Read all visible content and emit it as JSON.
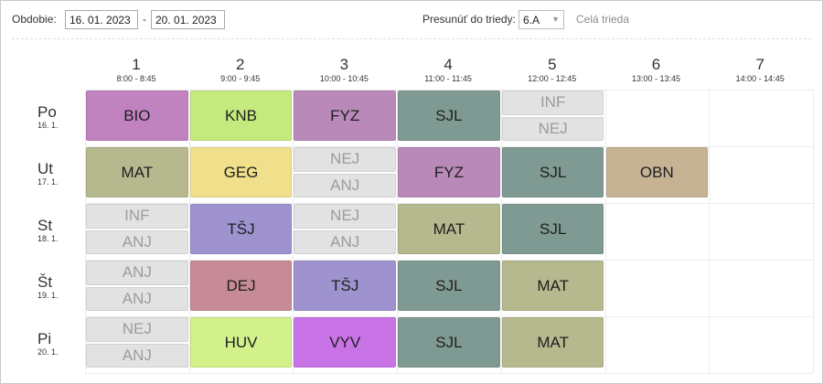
{
  "toolbar": {
    "period_label": "Obdobie:",
    "date_from": "16. 01. 2023",
    "date_sep": "-",
    "date_to": "20. 01. 2023",
    "move_label": "Presunúť do triedy:",
    "class_value": "6.A",
    "whole_class_link": "Celá trieda"
  },
  "colors": {
    "BIO": "#c083c0",
    "KNB": "#c4ea7e",
    "FYZ": "#b98ab9",
    "SJL": "#7f9a93",
    "MAT": "#b5b98d",
    "GEG": "#f0df8b",
    "OBN": "#c5b393",
    "TŠJ": "#9e93cf",
    "DEJ": "#c78b97",
    "HUV": "#d2f18a",
    "VYV": "#c873e6",
    "gray": "#e2e2e2"
  },
  "periods": [
    {
      "num": "1",
      "time": "8:00 - 8:45"
    },
    {
      "num": "2",
      "time": "9:00 - 9:45"
    },
    {
      "num": "3",
      "time": "10:00 - 10:45"
    },
    {
      "num": "4",
      "time": "11:00 - 11:45"
    },
    {
      "num": "5",
      "time": "12:00 - 12:45"
    },
    {
      "num": "6",
      "time": "13:00 - 13:45"
    },
    {
      "num": "7",
      "time": "14:00 - 14:45"
    }
  ],
  "days": [
    {
      "day": "Po",
      "date": "16. 1.",
      "lessons": [
        [
          "BIO"
        ],
        [
          "KNB"
        ],
        [
          "FYZ"
        ],
        [
          "SJL"
        ],
        [
          "INF",
          "NEJ"
        ],
        [],
        []
      ]
    },
    {
      "day": "Ut",
      "date": "17. 1.",
      "lessons": [
        [
          "MAT"
        ],
        [
          "GEG"
        ],
        [
          "NEJ",
          "ANJ"
        ],
        [
          "FYZ"
        ],
        [
          "SJL"
        ],
        [
          "OBN"
        ],
        []
      ]
    },
    {
      "day": "St",
      "date": "18. 1.",
      "lessons": [
        [
          "INF",
          "ANJ"
        ],
        [
          "TŠJ"
        ],
        [
          "NEJ",
          "ANJ"
        ],
        [
          "MAT"
        ],
        [
          "SJL"
        ],
        [],
        []
      ]
    },
    {
      "day": "Št",
      "date": "19. 1.",
      "lessons": [
        [
          "ANJ",
          "ANJ"
        ],
        [
          "DEJ"
        ],
        [
          "TŠJ"
        ],
        [
          "SJL"
        ],
        [
          "MAT"
        ],
        [],
        []
      ]
    },
    {
      "day": "Pi",
      "date": "20. 1.",
      "lessons": [
        [
          "NEJ",
          "ANJ"
        ],
        [
          "HUV"
        ],
        [
          "VYV"
        ],
        [
          "SJL"
        ],
        [
          "MAT"
        ],
        [],
        []
      ]
    }
  ]
}
